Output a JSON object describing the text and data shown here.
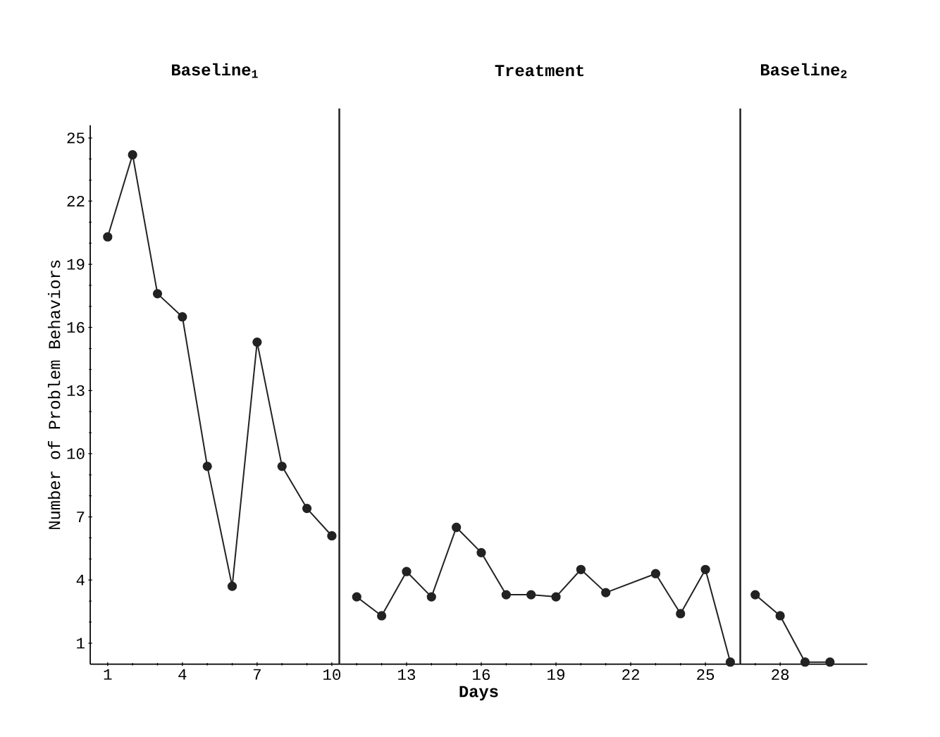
{
  "chart_data": {
    "type": "line",
    "xlabel": "Days",
    "ylabel": "Number of Problem Behaviors",
    "series": [
      {
        "color": "#222222",
        "x": [
          1,
          2,
          3,
          4,
          5,
          6,
          7,
          8,
          9,
          10
        ],
        "values": [
          20.3,
          24.2,
          17.6,
          16.5,
          9.4,
          3.7,
          15.3,
          9.4,
          7.4,
          6.1
        ]
      },
      {
        "color": "#222222",
        "x": [
          11,
          12,
          13,
          14,
          15,
          16,
          17,
          18,
          19,
          20,
          21,
          23,
          24,
          25,
          26
        ],
        "values": [
          3.2,
          2.3,
          4.4,
          3.2,
          6.5,
          5.3,
          3.3,
          3.3,
          3.2,
          4.5,
          3.4,
          4.3,
          2.4,
          4.5,
          0.1
        ]
      },
      {
        "color": "#222222",
        "x": [
          27,
          28,
          29,
          30
        ],
        "values": [
          3.3,
          2.3,
          0.1,
          0.1
        ]
      }
    ],
    "xlim": [
      0.3,
      31.5
    ],
    "ylim": [
      0,
      25.6
    ],
    "xticks": [
      1,
      4,
      7,
      10,
      13,
      16,
      19,
      22,
      25,
      28
    ],
    "yticks": [
      1,
      4,
      7,
      10,
      13,
      16,
      19,
      22,
      25
    ],
    "marker": "circle",
    "line_style": "solid",
    "grid": false,
    "ref_lines": [
      {
        "axis": "x",
        "value": 10.3,
        "color": "#222222"
      },
      {
        "axis": "x",
        "value": 26.4,
        "color": "#222222"
      }
    ],
    "annotations": [
      "Baseline$_{1}$",
      "Treatment",
      "Baseline$_{2}$"
    ]
  }
}
